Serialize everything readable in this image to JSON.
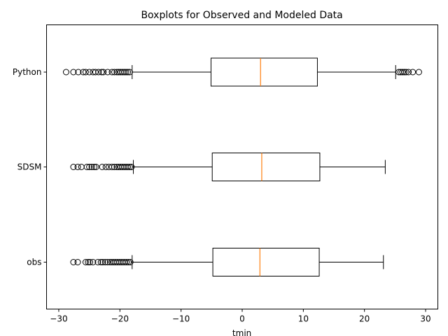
{
  "chart_data": {
    "type": "boxplot",
    "orientation": "horizontal",
    "title": "Boxplots for Observed and Modeled Data",
    "xlabel": "tmin",
    "ylabel": "",
    "xlim": [
      -32,
      32
    ],
    "xticks": [
      -30,
      -20,
      -10,
      0,
      10,
      20,
      30
    ],
    "xtick_labels": [
      "−30",
      "−20",
      "−10",
      "0",
      "10",
      "20",
      "30"
    ],
    "categories": [
      "obs",
      "SDSM",
      "Python"
    ],
    "grid": false,
    "colors": {
      "box": "#000000",
      "median": "#ff7f0e",
      "outlier": "#000000"
    },
    "series": [
      {
        "label": "obs",
        "whisker_low": -18.0,
        "q1": -4.8,
        "median": 2.9,
        "q3": 12.6,
        "whisker_high": 23.1,
        "outliers": [
          -27.6,
          -26.9,
          -25.6,
          -25.2,
          -24.9,
          -24.4,
          -23.6,
          -23.1,
          -22.8,
          -22.4,
          -22.0,
          -21.6,
          -21.3,
          -21.0,
          -20.7,
          -20.4,
          -20.1,
          -19.8,
          -19.5,
          -19.2,
          -18.9,
          -18.6,
          -18.3
        ]
      },
      {
        "label": "SDSM",
        "whisker_low": -17.8,
        "q1": -4.9,
        "median": 3.2,
        "q3": 12.7,
        "whisker_high": 23.4,
        "outliers": [
          -27.6,
          -26.9,
          -26.3,
          -25.4,
          -25.0,
          -24.6,
          -24.2,
          -23.9,
          -22.9,
          -22.3,
          -21.8,
          -21.3,
          -20.9,
          -20.5,
          -20.2,
          -19.9,
          -19.6,
          -19.3,
          -19.0,
          -18.7,
          -18.4,
          -18.1
        ]
      },
      {
        "label": "Python",
        "whisker_low": -18.0,
        "q1": -5.1,
        "median": 3.0,
        "q3": 12.3,
        "whisker_high": 25.1,
        "outliers_low": [
          -28.8,
          -27.6,
          -26.8,
          -26.0,
          -25.6,
          -25.0,
          -24.4,
          -24.0,
          -23.5,
          -23.0,
          -22.7,
          -22.0,
          -21.3,
          -20.9,
          -20.5,
          -20.2,
          -19.9,
          -19.6,
          -19.3,
          -19.0,
          -18.7,
          -18.4
        ],
        "outliers_high": [
          25.6,
          25.9,
          26.2,
          26.5,
          26.8,
          27.2,
          27.9,
          28.9
        ]
      }
    ]
  }
}
